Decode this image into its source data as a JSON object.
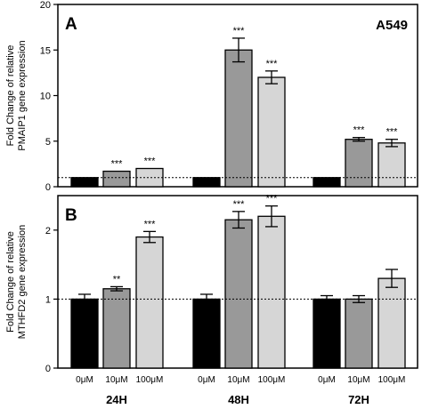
{
  "corner_label": "A549",
  "chart_data": [
    {
      "type": "bar",
      "panel_letter": "A",
      "ylabel_lines": [
        "Fold Change of relative",
        "PMAIP1  gene expression"
      ],
      "ylim": [
        0,
        20
      ],
      "yticks": [
        0,
        5,
        10,
        15,
        20
      ],
      "reference_line": 1,
      "groups": [
        "24H",
        "48H",
        "72H"
      ],
      "categories": [
        "0μM",
        "10μM",
        "100μM"
      ],
      "colors": [
        "#000000",
        "#999999",
        "#d6d6d6"
      ],
      "values": [
        [
          1.0,
          1.7,
          2.0
        ],
        [
          1.0,
          15.0,
          12.0
        ],
        [
          1.0,
          5.2,
          4.8
        ]
      ],
      "errors": [
        [
          0.0,
          0.0,
          0.0
        ],
        [
          0.0,
          1.3,
          0.7
        ],
        [
          0.0,
          0.2,
          0.4
        ]
      ],
      "significance": [
        [
          "",
          "***",
          "***"
        ],
        [
          "",
          "***",
          "***"
        ],
        [
          "",
          "***",
          "***"
        ]
      ],
      "grid": false
    },
    {
      "type": "bar",
      "panel_letter": "B",
      "ylabel_lines": [
        "Fold Change of relative",
        "MTHFD2 gene expression"
      ],
      "ylim": [
        0,
        2.5
      ],
      "yticks": [
        0,
        1,
        2
      ],
      "reference_line": 1,
      "groups": [
        "24H",
        "48H",
        "72H"
      ],
      "categories": [
        "0μM",
        "10μM",
        "100μM"
      ],
      "colors": [
        "#000000",
        "#999999",
        "#d6d6d6"
      ],
      "values": [
        [
          1.0,
          1.15,
          1.9
        ],
        [
          1.0,
          2.15,
          2.2
        ],
        [
          1.0,
          1.0,
          1.3
        ]
      ],
      "errors": [
        [
          0.07,
          0.03,
          0.08
        ],
        [
          0.07,
          0.12,
          0.15
        ],
        [
          0.05,
          0.05,
          0.13
        ]
      ],
      "significance": [
        [
          "",
          "**",
          "***"
        ],
        [
          "",
          "***",
          "***"
        ],
        [
          "",
          "",
          ""
        ]
      ],
      "grid": false
    }
  ]
}
